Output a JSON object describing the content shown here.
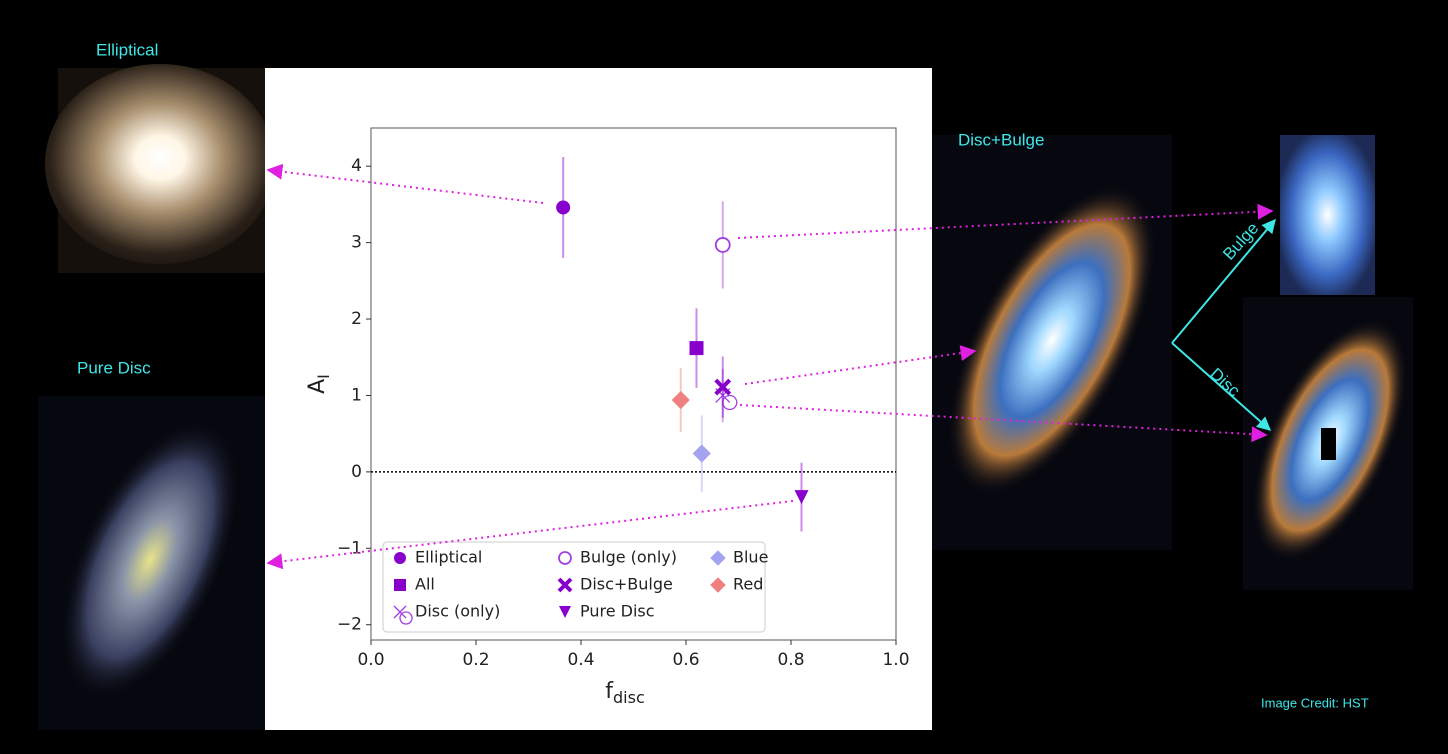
{
  "chart_data": {
    "type": "scatter",
    "xlabel": "f",
    "xlabel_sub": "disc",
    "ylabel": "A",
    "ylabel_sub": "I",
    "xlim": [
      0,
      1
    ],
    "ylim": [
      -2.2,
      4.5
    ],
    "xticks": [
      {
        "value": 0,
        "label": "0.0"
      },
      0.2,
      0.4,
      0.6,
      0.8,
      {
        "value": 1,
        "label": "1.0"
      }
    ],
    "yticks": [
      {
        "value": -2,
        "label": "−2"
      },
      {
        "value": -1,
        "label": "−1"
      },
      0,
      1,
      2,
      3,
      4
    ],
    "hline": 0,
    "legend": "lower left",
    "series": [
      {
        "name": "Elliptical",
        "color": "#8800cc",
        "marker": "circle",
        "x": [
          0.366
        ],
        "values": [
          3.46
        ],
        "errors": [
          0.66
        ]
      },
      {
        "name": "All",
        "color": "#8800cc",
        "marker": "square",
        "x": [
          0.62
        ],
        "values": [
          1.62
        ],
        "errors": [
          0.52
        ]
      },
      {
        "name": "Disc (only)",
        "color": "#a040e0",
        "marker": "open-x",
        "x": [
          0.67
        ],
        "values": [
          1.0
        ],
        "errors": [
          0.35
        ]
      },
      {
        "name": "Bulge (only)",
        "color": "#a040e0",
        "marker": "open-circle",
        "x": [
          0.67
        ],
        "values": [
          2.97
        ],
        "errors": [
          0.57
        ]
      },
      {
        "name": "Disc+Bulge",
        "color": "#8800cc",
        "marker": "x",
        "x": [
          0.67
        ],
        "values": [
          1.11
        ],
        "errors": [
          0.4
        ]
      },
      {
        "name": "Pure Disc",
        "color": "#8800cc",
        "marker": "triangle-down",
        "x": [
          0.82
        ],
        "values": [
          -0.33
        ],
        "errors": [
          0.45
        ]
      },
      {
        "name": "Blue",
        "color": "#a3a3f0",
        "marker": "diamond",
        "x": [
          0.63
        ],
        "values": [
          0.24
        ],
        "errors": [
          0.5
        ]
      },
      {
        "name": "Red",
        "color": "#f08080",
        "marker": "diamond",
        "x": [
          0.59
        ],
        "values": [
          0.94
        ],
        "errors": [
          0.42
        ]
      }
    ],
    "annotations": [
      "Elliptical",
      "Pure Disc",
      "Disc+Bulge",
      "Bulge",
      "Disc",
      "Image Credit: HST"
    ]
  }
}
